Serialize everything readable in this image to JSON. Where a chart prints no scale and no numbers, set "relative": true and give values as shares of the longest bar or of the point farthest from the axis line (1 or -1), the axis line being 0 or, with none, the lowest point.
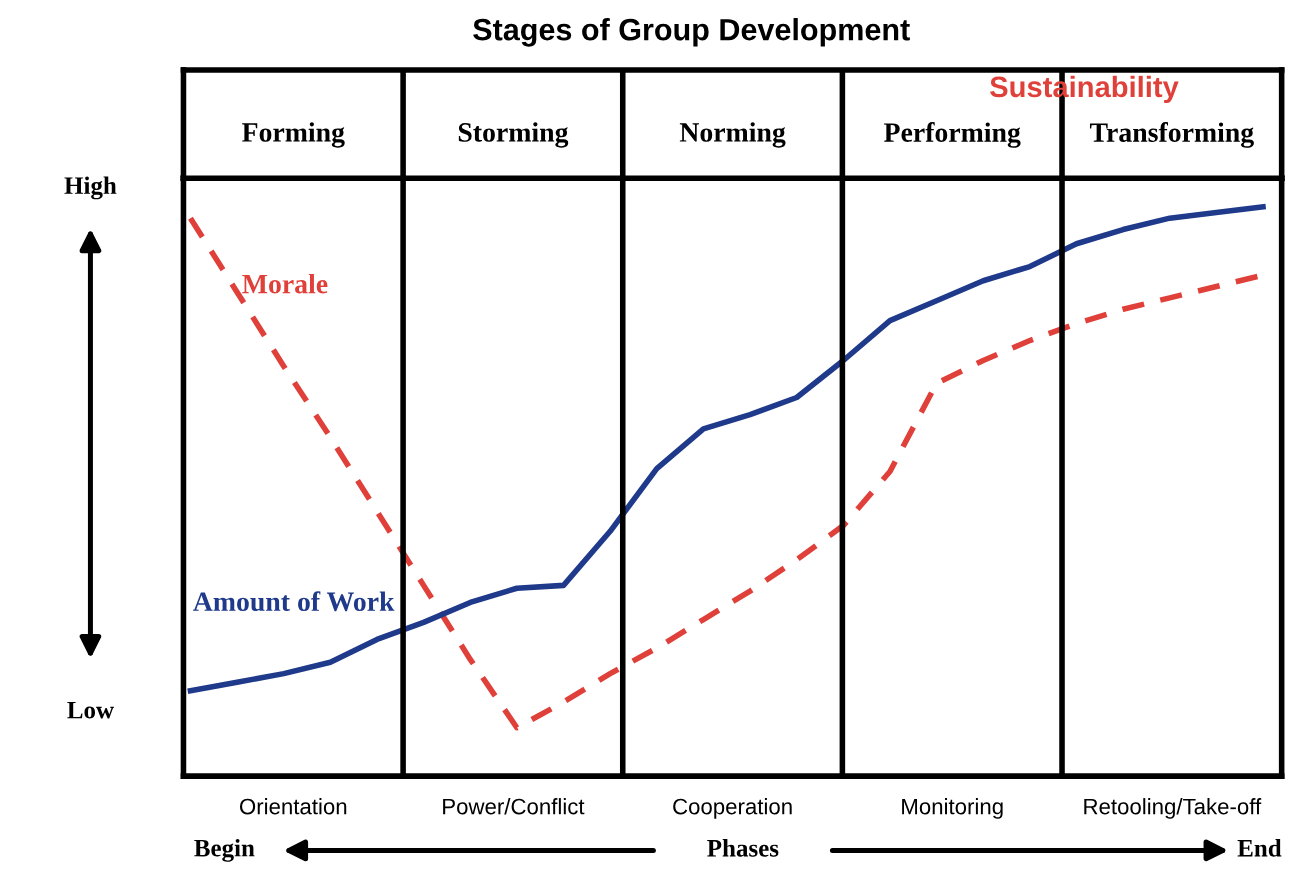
{
  "chart_data": {
    "type": "line",
    "title": "Stages of Group Development",
    "relative": true,
    "categories": [
      null,
      null,
      null,
      null,
      null,
      null,
      null,
      null,
      null,
      null,
      null,
      null,
      null,
      null,
      null,
      null,
      null,
      null,
      null,
      null,
      null,
      null,
      null,
      null
    ],
    "series": [
      {
        "name": "Morale",
        "color": "#e0403a",
        "line_style": "dashed",
        "values": [
          0.98,
          0.85,
          0.72,
          0.595,
          0.465,
          0.335,
          0.205,
          0.085,
          0.13,
          0.18,
          0.225,
          0.275,
          0.325,
          0.38,
          0.44,
          0.535,
          0.69,
          0.73,
          0.765,
          0.795,
          0.82,
          0.84,
          0.86,
          0.88
        ]
      },
      {
        "name": "Amount of Work",
        "color": "#1f3a8a",
        "line_style": "solid",
        "values": [
          0.15,
          0.165,
          0.18,
          0.2,
          0.24,
          0.27,
          0.305,
          0.33,
          0.335,
          0.43,
          0.54,
          0.61,
          0.635,
          0.665,
          0.73,
          0.8,
          0.835,
          0.87,
          0.895,
          0.935,
          0.96,
          0.98,
          0.99,
          1.0
        ]
      }
    ],
    "annotations": [
      "Forming",
      "Storming",
      "Norming",
      "Performing",
      "Transforming",
      "Orientation",
      "Power/Conflict",
      "Cooperation",
      "Monitoring",
      "Retooling/Take-off",
      "Sustainability",
      "High",
      "Low",
      "Begin",
      "Phases",
      "End"
    ],
    "grid": false,
    "legend": false,
    "marker": "none"
  }
}
